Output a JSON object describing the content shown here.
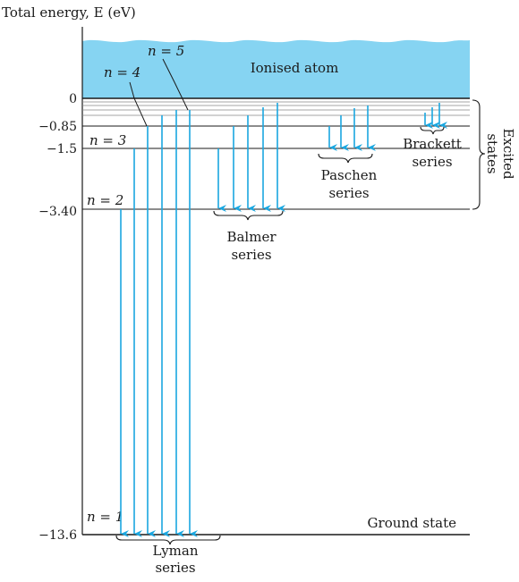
{
  "axis_title": "Total energy, E (eV)",
  "region_label": "Ionised atom",
  "excited_label_line1": "Excited",
  "excited_label_line2": "states",
  "ground_state_label": "Ground state",
  "colors": {
    "ionised_fill": "#86d4f2",
    "arrow": "#1aa7e0",
    "line": "#1a1a1a"
  },
  "levels": [
    {
      "n": "1",
      "label": "n = 1",
      "energy_label": "−13.6"
    },
    {
      "n": "2",
      "label": "n = 2",
      "energy_label": "−3.40"
    },
    {
      "n": "3",
      "label": "n = 3",
      "energy_label": "−1.5"
    },
    {
      "n": "4",
      "label": "n = 4",
      "energy_label": "−0.85"
    },
    {
      "n": "5",
      "label": "n = 5",
      "energy_label": ""
    },
    {
      "n": "inf",
      "label": "",
      "energy_label": "0"
    }
  ],
  "series": [
    {
      "name_line1": "Lyman",
      "name_line2": "series",
      "lower_level": 1,
      "transitions_from": [
        2,
        3,
        4,
        5,
        6,
        7
      ]
    },
    {
      "name_line1": "Balmer",
      "name_line2": "series",
      "lower_level": 2,
      "transitions_from": [
        3,
        4,
        5,
        6,
        7
      ]
    },
    {
      "name_line1": "Paschen",
      "name_line2": "series",
      "lower_level": 3,
      "transitions_from": [
        4,
        5,
        6,
        7
      ]
    },
    {
      "name_line1": "Brackett",
      "name_line2": "series",
      "lower_level": 4,
      "transitions_from": [
        5,
        6,
        7
      ]
    }
  ]
}
